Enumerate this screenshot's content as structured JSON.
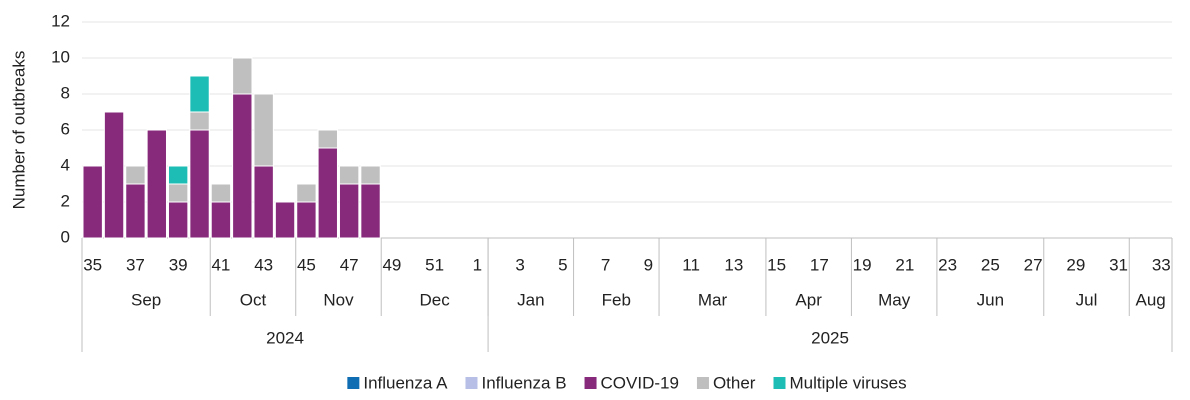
{
  "chart_data": {
    "type": "bar",
    "stacked": true,
    "y_label": "Number of outbreaks",
    "ylim": [
      0,
      12
    ],
    "yticks": [
      0,
      2,
      4,
      6,
      8,
      10,
      12
    ],
    "grid": true,
    "legend": "bottom",
    "categories": [
      "35",
      null,
      "37",
      null,
      "39",
      null,
      "41",
      null,
      "43",
      null,
      "45",
      null,
      "47",
      null,
      "49",
      null,
      "51",
      null,
      "1",
      null,
      "3",
      null,
      "5",
      null,
      "7",
      null,
      "9",
      null,
      "11",
      null,
      "13",
      null,
      "15",
      null,
      "17",
      null,
      "19",
      null,
      "21",
      null,
      "23",
      null,
      "25",
      null,
      "27",
      null,
      "29",
      null,
      "31",
      null,
      "33"
    ],
    "month_groups": [
      {
        "label": "Sep",
        "count": 6
      },
      {
        "label": "Oct",
        "count": 4
      },
      {
        "label": "Nov",
        "count": 4
      },
      {
        "label": "Dec",
        "count": 5
      },
      {
        "label": "Jan",
        "count": 4
      },
      {
        "label": "Feb",
        "count": 4
      },
      {
        "label": "Mar",
        "count": 5
      },
      {
        "label": "Apr",
        "count": 4
      },
      {
        "label": "May",
        "count": 4
      },
      {
        "label": "Jun",
        "count": 5
      },
      {
        "label": "Jul",
        "count": 4
      },
      {
        "label": "Aug",
        "count": 2
      }
    ],
    "year_groups": [
      {
        "label": "2024",
        "count": 19
      },
      {
        "label": "2025",
        "count": 32
      }
    ],
    "series": [
      {
        "name": "Influenza A",
        "color": "#0f6db3",
        "values": [
          0,
          0,
          0,
          0,
          0,
          0,
          0,
          0,
          0,
          0,
          0,
          0,
          0,
          0,
          null,
          null,
          null,
          null,
          null,
          null,
          null,
          null,
          null,
          null,
          null,
          null,
          null,
          null,
          null,
          null,
          null,
          null,
          null,
          null,
          null,
          null,
          null,
          null,
          null,
          null,
          null,
          null,
          null,
          null,
          null,
          null,
          null,
          null,
          null,
          null,
          null
        ]
      },
      {
        "name": "Influenza B",
        "color": "#b7bfe6",
        "values": [
          0,
          0,
          0,
          0,
          0,
          0,
          0,
          0,
          0,
          0,
          0,
          0,
          0,
          0,
          null,
          null,
          null,
          null,
          null,
          null,
          null,
          null,
          null,
          null,
          null,
          null,
          null,
          null,
          null,
          null,
          null,
          null,
          null,
          null,
          null,
          null,
          null,
          null,
          null,
          null,
          null,
          null,
          null,
          null,
          null,
          null,
          null,
          null,
          null,
          null,
          null
        ]
      },
      {
        "name": "COVID-19",
        "color": "#872a7b",
        "values": [
          4,
          7,
          3,
          6,
          2,
          6,
          2,
          8,
          4,
          2,
          2,
          5,
          3,
          3,
          null,
          null,
          null,
          null,
          null,
          null,
          null,
          null,
          null,
          null,
          null,
          null,
          null,
          null,
          null,
          null,
          null,
          null,
          null,
          null,
          null,
          null,
          null,
          null,
          null,
          null,
          null,
          null,
          null,
          null,
          null,
          null,
          null,
          null,
          null,
          null,
          null
        ]
      },
      {
        "name": "Other",
        "color": "#bfbfbf",
        "values": [
          0,
          0,
          1,
          0,
          1,
          1,
          1,
          2,
          4,
          0,
          1,
          1,
          1,
          1,
          null,
          null,
          null,
          null,
          null,
          null,
          null,
          null,
          null,
          null,
          null,
          null,
          null,
          null,
          null,
          null,
          null,
          null,
          null,
          null,
          null,
          null,
          null,
          null,
          null,
          null,
          null,
          null,
          null,
          null,
          null,
          null,
          null,
          null,
          null,
          null,
          null
        ]
      },
      {
        "name": "Multiple viruses",
        "color": "#1dbdb6",
        "values": [
          0,
          0,
          0,
          0,
          1,
          2,
          0,
          0,
          0,
          0,
          0,
          0,
          0,
          0,
          null,
          null,
          null,
          null,
          null,
          null,
          null,
          null,
          null,
          null,
          null,
          null,
          null,
          null,
          null,
          null,
          null,
          null,
          null,
          null,
          null,
          null,
          null,
          null,
          null,
          null,
          null,
          null,
          null,
          null,
          null,
          null,
          null,
          null,
          null,
          null,
          null
        ]
      }
    ]
  }
}
